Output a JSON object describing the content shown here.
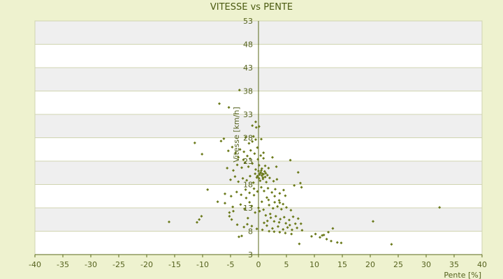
{
  "chart_data": {
    "type": "scatter",
    "title": "VITESSE vs PENTE",
    "xlabel": "Pente [%]",
    "ylabel": "Vitesse [km/h]",
    "xlim": [
      -40,
      40
    ],
    "ylim": [
      3,
      53
    ],
    "x_ticks": [
      -40,
      -35,
      -30,
      -25,
      -20,
      -15,
      -10,
      -5,
      0,
      5,
      10,
      15,
      20,
      25,
      30,
      35,
      40
    ],
    "y_ticks": [
      3,
      8,
      13,
      18,
      23,
      28,
      33,
      38,
      43,
      48,
      53
    ],
    "grid": "horizontal bands",
    "legend": "none",
    "colors": {
      "background": "#eef2cf",
      "band_light": "#ffffff",
      "band_dark": "#efefef",
      "grid": "#d0d4b0",
      "axis": "#5a6a1a",
      "marker": "#6b7a1b",
      "text": "#55621e"
    },
    "points": [
      [
        -7.0,
        35.3
      ],
      [
        -5.3,
        34.5
      ],
      [
        -3.4,
        38.2
      ],
      [
        -6.2,
        27.8
      ],
      [
        -6.7,
        27.3
      ],
      [
        -11.4,
        26.9
      ],
      [
        -10.1,
        24.5
      ],
      [
        -5.4,
        25.2
      ],
      [
        -4.7,
        26.0
      ],
      [
        -4.1,
        24.8
      ],
      [
        -3.3,
        25.5
      ],
      [
        -2.6,
        25.0
      ],
      [
        -2.0,
        24.1
      ],
      [
        -1.4,
        25.3
      ],
      [
        -0.7,
        24.6
      ],
      [
        -0.2,
        25.9
      ],
      [
        0.4,
        24.2
      ],
      [
        0.9,
        24.8
      ],
      [
        -5.6,
        21.5
      ],
      [
        -4.5,
        21.0
      ],
      [
        -3.8,
        22.2
      ],
      [
        -3.0,
        21.6
      ],
      [
        -2.4,
        22.7
      ],
      [
        -1.8,
        21.8
      ],
      [
        -1.1,
        22.5
      ],
      [
        -0.5,
        21.2
      ],
      [
        0.1,
        22.1
      ],
      [
        0.6,
        21.4
      ],
      [
        1.2,
        22.0
      ],
      [
        1.8,
        21.5
      ],
      [
        -5.0,
        19.0
      ],
      [
        -4.2,
        19.7
      ],
      [
        -3.6,
        18.6
      ],
      [
        -2.8,
        19.3
      ],
      [
        -2.1,
        18.9
      ],
      [
        -1.5,
        19.8
      ],
      [
        -0.9,
        18.4
      ],
      [
        -0.3,
        19.5
      ],
      [
        0.3,
        18.8
      ],
      [
        0.8,
        19.2
      ],
      [
        1.4,
        18.5
      ],
      [
        2.0,
        19.4
      ],
      [
        2.7,
        18.7
      ],
      [
        3.3,
        19.1
      ],
      [
        -6.0,
        16.0
      ],
      [
        -4.9,
        15.5
      ],
      [
        -3.9,
        16.4
      ],
      [
        -3.1,
        15.8
      ],
      [
        -2.3,
        16.9
      ],
      [
        -1.6,
        16.2
      ],
      [
        -0.8,
        17.1
      ],
      [
        -0.2,
        16.5
      ],
      [
        0.5,
        17.4
      ],
      [
        1.0,
        16.6
      ],
      [
        1.7,
        17.2
      ],
      [
        2.4,
        16.3
      ],
      [
        3.0,
        17.0
      ],
      [
        3.8,
        16.1
      ],
      [
        4.5,
        16.8
      ],
      [
        -4.6,
        13.2
      ],
      [
        -3.2,
        13.7
      ],
      [
        -2.5,
        12.8
      ],
      [
        -1.2,
        13.4
      ],
      [
        0.0,
        13.0
      ],
      [
        0.9,
        12.6
      ],
      [
        1.9,
        13.6
      ],
      [
        2.6,
        12.9
      ],
      [
        3.4,
        13.3
      ],
      [
        4.1,
        12.7
      ],
      [
        5.0,
        13.1
      ],
      [
        5.8,
        12.5
      ],
      [
        -5.2,
        11.2
      ],
      [
        -4.8,
        10.5
      ],
      [
        -1.9,
        10.8
      ],
      [
        1.3,
        11.4
      ],
      [
        2.2,
        10.9
      ],
      [
        3.1,
        11.2
      ],
      [
        3.9,
        10.6
      ],
      [
        4.6,
        11.0
      ],
      [
        5.5,
        10.4
      ],
      [
        6.2,
        11.1
      ],
      [
        7.1,
        10.7
      ],
      [
        7.6,
        9.6
      ],
      [
        -2.6,
        8.9
      ],
      [
        1.5,
        9.2
      ],
      [
        2.5,
        8.6
      ],
      [
        3.5,
        9.0
      ],
      [
        4.4,
        8.4
      ],
      [
        5.2,
        8.8
      ],
      [
        6.0,
        8.3
      ],
      [
        6.9,
        8.7
      ],
      [
        7.8,
        8.2
      ],
      [
        -3.5,
        6.8
      ],
      [
        -3.0,
        7.0
      ],
      [
        7.3,
        5.3
      ],
      [
        9.5,
        6.9
      ],
      [
        10.2,
        7.4
      ],
      [
        11.0,
        6.7
      ],
      [
        11.7,
        7.2
      ],
      [
        12.2,
        6.3
      ],
      [
        13.0,
        5.9
      ],
      [
        14.1,
        5.6
      ],
      [
        14.8,
        5.5
      ],
      [
        13.3,
        8.6
      ],
      [
        20.5,
        10.1
      ],
      [
        23.8,
        5.2
      ],
      [
        32.4,
        13.1
      ],
      [
        -16.0,
        10.0
      ],
      [
        -11.0,
        9.9
      ],
      [
        -10.6,
        10.5
      ],
      [
        -10.2,
        11.2
      ],
      [
        -9.1,
        16.9
      ],
      [
        -7.3,
        14.3
      ],
      [
        -6.0,
        14.0
      ],
      [
        -5.2,
        12.0
      ],
      [
        -4.5,
        12.3
      ],
      [
        -3.8,
        9.4
      ],
      [
        -1.1,
        30.6
      ],
      [
        -0.5,
        31.4
      ],
      [
        -0.4,
        30.2
      ],
      [
        0.1,
        30.4
      ],
      [
        -1.1,
        27.2
      ],
      [
        -0.9,
        28.3
      ],
      [
        -0.5,
        27.6
      ],
      [
        0.5,
        27.7
      ],
      [
        -0.2,
        19.8
      ],
      [
        0.2,
        20.1
      ],
      [
        0.4,
        20.6
      ],
      [
        0.7,
        20.3
      ],
      [
        1.1,
        20.8
      ],
      [
        0.3,
        20.4
      ],
      [
        0.6,
        19.9
      ],
      [
        0.9,
        20.2
      ],
      [
        1.2,
        19.6
      ],
      [
        0.0,
        20.9
      ],
      [
        0.5,
        21.0
      ],
      [
        0.8,
        19.5
      ],
      [
        1.3,
        20.4
      ],
      [
        1.6,
        20.0
      ],
      [
        -0.6,
        20.3
      ],
      [
        0.1,
        19.3
      ],
      [
        2.5,
        23.8
      ],
      [
        3.2,
        21.8
      ],
      [
        5.7,
        23.2
      ],
      [
        7.1,
        20.6
      ],
      [
        7.5,
        18.3
      ],
      [
        7.7,
        17.4
      ],
      [
        6.4,
        17.8
      ],
      [
        4.8,
        15.6
      ],
      [
        3.7,
        14.6
      ],
      [
        2.9,
        14.2
      ],
      [
        1.8,
        14.7
      ],
      [
        0.6,
        14.3
      ],
      [
        0.2,
        12.3
      ],
      [
        -0.6,
        12.0
      ],
      [
        -1.6,
        14.2
      ],
      [
        -2.2,
        15.1
      ],
      [
        -0.8,
        15.7
      ],
      [
        1.5,
        15.2
      ],
      [
        2.9,
        15.5
      ],
      [
        3.8,
        14.1
      ],
      [
        4.4,
        13.8
      ],
      [
        1.0,
        9.8
      ],
      [
        1.6,
        10.2
      ],
      [
        2.1,
        11.7
      ],
      [
        2.8,
        10.1
      ],
      [
        3.7,
        9.9
      ],
      [
        4.9,
        9.7
      ],
      [
        5.6,
        9.3
      ],
      [
        6.6,
        9.6
      ],
      [
        5.9,
        7.4
      ],
      [
        4.8,
        7.6
      ],
      [
        3.8,
        7.8
      ],
      [
        2.8,
        7.9
      ],
      [
        1.9,
        8.0
      ],
      [
        0.7,
        8.3
      ],
      [
        -0.3,
        8.5
      ],
      [
        -1.2,
        9.1
      ],
      [
        -2.0,
        9.5
      ],
      [
        11.4,
        7.1
      ],
      [
        12.5,
        7.8
      ],
      [
        -1.5,
        23.5
      ],
      [
        -2.7,
        23.3
      ],
      [
        -3.6,
        23.8
      ],
      [
        -0.1,
        23.4
      ],
      [
        0.9,
        23.6
      ],
      [
        -1.7,
        26.8
      ],
      [
        -2.3,
        28.1
      ]
    ]
  }
}
